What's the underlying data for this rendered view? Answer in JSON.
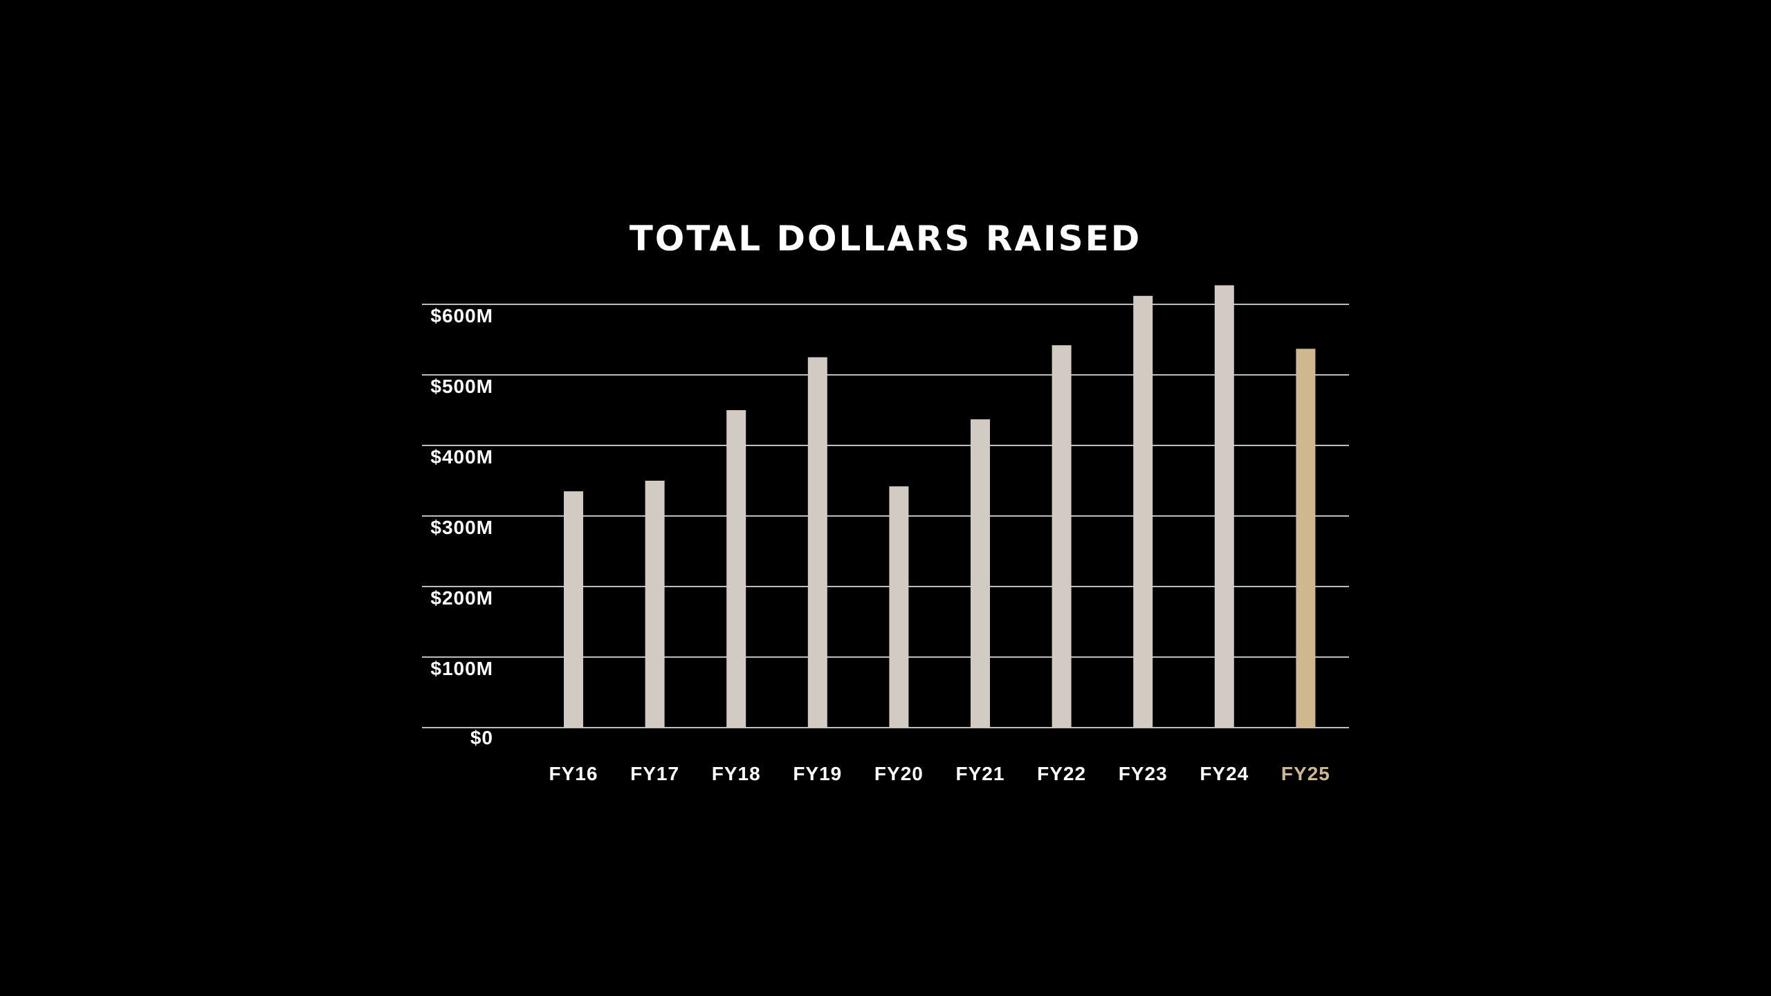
{
  "chart_data": {
    "type": "bar",
    "title": "TOTAL DOLLARS RAISED",
    "xlabel": "",
    "ylabel": "",
    "categories": [
      "FY16",
      "FY17",
      "FY18",
      "FY19",
      "FY20",
      "FY21",
      "FY22",
      "FY23",
      "FY24",
      "FY25"
    ],
    "values": [
      335,
      350,
      450,
      525,
      342,
      437,
      542,
      612,
      627,
      537
    ],
    "ylim": [
      0,
      600
    ],
    "yticks": [
      0,
      100,
      200,
      300,
      400,
      500,
      600
    ],
    "ytick_labels": [
      "$0",
      "$100M",
      "$200M",
      "$300M",
      "$400M",
      "$500M",
      "$600M"
    ],
    "grid": true,
    "highlight_category": "FY25",
    "colors": {
      "background": "#000000",
      "bar": "#d1cbc4",
      "highlight_bar": "#cdb98d",
      "gridline": "#bdbdbd",
      "text": "#ffffff",
      "highlight_text": "#cdb98d"
    }
  }
}
